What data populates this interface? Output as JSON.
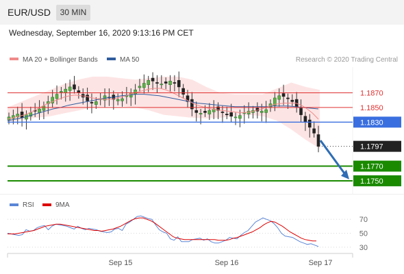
{
  "header": {
    "pair": "EUR/USD",
    "timeframe": "30 MIN"
  },
  "timestamp": "Wednesday, September 16, 2020 9:13:16 PM CET",
  "legend": {
    "ma20": "MA 20 + Bollinger Bands",
    "ma50": "MA 50",
    "credit": "Research © 2020 Trading Central"
  },
  "rsi_legend": {
    "rsi": "RSI",
    "ma9": "9MA"
  },
  "colors": {
    "ma20": "#f08a8a",
    "ma50": "#2f5c9e",
    "band": "#fde1e1",
    "resistance": "#e03030",
    "pivot": "#3a6fe0",
    "support": "#1a8a00",
    "arrow": "#2f6db4",
    "rsi": "#5b86d6",
    "rsi9": "#dd0000"
  },
  "chart_data": [
    {
      "type": "candlestick",
      "ylim": [
        1.1735,
        1.1905
      ],
      "xlabels": [
        "Sep 15",
        "Sep 16",
        "Sep 17"
      ],
      "levels": [
        {
          "value": "1.1870",
          "kind": "resistance"
        },
        {
          "value": "1.1850",
          "kind": "resistance"
        },
        {
          "value": "1.1830",
          "kind": "pivot"
        },
        {
          "value": "1.1797",
          "kind": "last"
        },
        {
          "value": "1.1770",
          "kind": "support"
        },
        {
          "value": "1.1750",
          "kind": "support"
        }
      ],
      "closes": [
        1.1837,
        1.1839,
        1.1841,
        1.1836,
        1.184,
        1.1843,
        1.1845,
        1.1848,
        1.1852,
        1.1858,
        1.1864,
        1.1868,
        1.1872,
        1.1875,
        1.1878,
        1.1875,
        1.187,
        1.1864,
        1.1859,
        1.1856,
        1.1858,
        1.1862,
        1.1866,
        1.1864,
        1.1861,
        1.1861,
        1.1862,
        1.1866,
        1.187,
        1.1874,
        1.1879,
        1.1883,
        1.1887,
        1.1886,
        1.1884,
        1.1882,
        1.1883,
        1.1886,
        1.1884,
        1.1878,
        1.1868,
        1.1858,
        1.1848,
        1.1843,
        1.1842,
        1.1843,
        1.1846,
        1.1848,
        1.1846,
        1.1843,
        1.184,
        1.1838,
        1.1837,
        1.1839,
        1.1843,
        1.1845,
        1.1846,
        1.1845,
        1.1845,
        1.1847,
        1.1855,
        1.1863,
        1.1866,
        1.1865,
        1.1862,
        1.1858,
        1.1851,
        1.184,
        1.183,
        1.1823,
        1.1815,
        1.1797
      ],
      "ma20": [
        1.1834,
        1.1836,
        1.1838,
        1.184,
        1.1843,
        1.1847,
        1.1851,
        1.1855,
        1.1858,
        1.1861,
        1.1864,
        1.1866,
        1.1867,
        1.1866,
        1.1865,
        1.1863,
        1.1862,
        1.1861,
        1.1861,
        1.1862,
        1.1864,
        1.1866,
        1.1869,
        1.1871,
        1.1873,
        1.1875,
        1.1876,
        1.1876,
        1.1874,
        1.1871,
        1.1867,
        1.1863,
        1.1859,
        1.1855,
        1.1852,
        1.185,
        1.1848,
        1.1847,
        1.1846,
        1.1845,
        1.1844,
        1.1843,
        1.1843,
        1.1844,
        1.1846,
        1.1848,
        1.1851,
        1.1854,
        1.1855,
        1.1856,
        1.1856,
        1.1856,
        1.1853,
        1.1848,
        1.1842,
        1.1834
      ],
      "ma50": [
        1.1832,
        1.1834,
        1.1836,
        1.1839,
        1.1842,
        1.1845,
        1.1848,
        1.185,
        1.1853,
        1.1855,
        1.1857,
        1.1859,
        1.1861,
        1.1863,
        1.1864,
        1.1866,
        1.1867,
        1.1868,
        1.1868,
        1.1867,
        1.1866,
        1.1864,
        1.1862,
        1.186,
        1.1858,
        1.1856,
        1.1855,
        1.1854,
        1.1853,
        1.1852,
        1.1851,
        1.1851,
        1.1851,
        1.1851,
        1.1851,
        1.1852,
        1.1852,
        1.1852,
        1.1851,
        1.185,
        1.1849,
        1.1848
      ],
      "band_upper": [
        1.185,
        1.1858,
        1.1866,
        1.1874,
        1.1882,
        1.1888,
        1.1892,
        1.1892,
        1.189,
        1.1888,
        1.189,
        1.1892,
        1.1892,
        1.1888,
        1.1878,
        1.187,
        1.1868,
        1.1868,
        1.1868,
        1.1876,
        1.1884,
        1.1878,
        1.1874
      ],
      "band_lower": [
        1.183,
        1.1833,
        1.1836,
        1.1838,
        1.1842,
        1.1846,
        1.185,
        1.1852,
        1.1852,
        1.185,
        1.1846,
        1.184,
        1.1838,
        1.1836,
        1.1835,
        1.1836,
        1.1838,
        1.184,
        1.1838,
        1.1832,
        1.182,
        1.1806,
        1.1794
      ]
    },
    {
      "type": "line",
      "ylim": [
        25,
        78
      ],
      "yticks": [
        "70",
        "50",
        "30"
      ],
      "rsi": [
        50,
        49,
        48,
        47,
        48,
        55,
        53,
        54,
        58,
        60,
        61,
        55,
        60,
        63,
        62,
        61,
        60,
        58,
        56,
        60,
        57,
        55,
        57,
        56,
        55,
        53,
        52,
        51,
        52,
        56,
        57,
        54,
        63,
        66,
        70,
        74,
        75,
        73,
        71,
        70,
        62,
        55,
        52,
        50,
        42,
        40,
        45,
        38,
        38,
        38,
        41,
        42,
        43,
        40,
        42,
        38,
        36,
        36,
        38,
        40,
        44,
        43,
        42,
        47,
        51,
        54,
        60,
        66,
        69,
        72,
        70,
        68,
        64,
        58,
        50,
        46,
        45,
        44,
        41,
        38,
        36,
        34,
        35,
        33,
        31
      ],
      "ma9": [
        49,
        49,
        49,
        50,
        51,
        52,
        53,
        54,
        56,
        58,
        60,
        61,
        62,
        63,
        63,
        62,
        61,
        60,
        59,
        58,
        57,
        56,
        55,
        54,
        54,
        53,
        54,
        55,
        56,
        58,
        60,
        63,
        66,
        69,
        71,
        72,
        72,
        70,
        68,
        65,
        61,
        57,
        53,
        49,
        45,
        43,
        42,
        41,
        41,
        41,
        41,
        41,
        41,
        41,
        41,
        41,
        40,
        40,
        40,
        41,
        43,
        44,
        46,
        48,
        50,
        52,
        55,
        58,
        62,
        65,
        67,
        66,
        63,
        60,
        56,
        52,
        49,
        46,
        43,
        41,
        40,
        39,
        39
      ]
    }
  ]
}
